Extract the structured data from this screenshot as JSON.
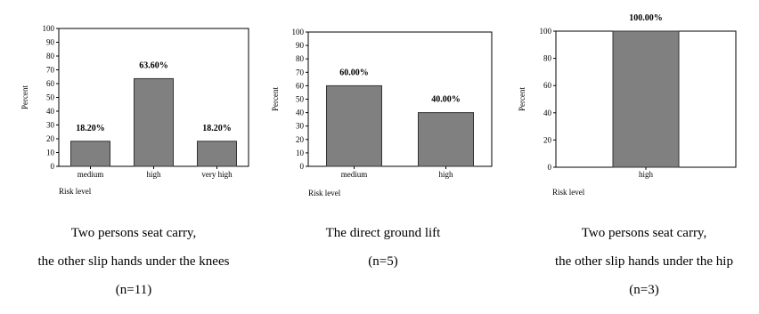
{
  "chart_data": [
    {
      "type": "bar",
      "categories": [
        "medium",
        "high",
        "very high"
      ],
      "values": [
        18.2,
        63.6,
        18.2
      ],
      "data_labels": [
        "18.20%",
        "63.60%",
        "18.20%"
      ],
      "ylabel": "Percent",
      "xlabel": "Risk level",
      "ylim": [
        0,
        100
      ],
      "yticks": [
        0,
        10,
        20,
        30,
        40,
        50,
        60,
        70,
        80,
        90,
        100
      ],
      "caption": [
        "Two persons seat carry,",
        "the other slip hands under the knees",
        "(n=11)"
      ],
      "grid": false,
      "legend": "none"
    },
    {
      "type": "bar",
      "categories": [
        "medium",
        "high"
      ],
      "values": [
        60.0,
        40.0
      ],
      "data_labels": [
        "60.00%",
        "40.00%"
      ],
      "ylabel": "Percent",
      "xlabel": "Risk level",
      "ylim": [
        0,
        100
      ],
      "yticks": [
        0,
        10,
        20,
        30,
        40,
        50,
        60,
        70,
        80,
        90,
        100
      ],
      "caption": [
        "The direct ground lift",
        "(n=5)"
      ],
      "grid": false,
      "legend": "none"
    },
    {
      "type": "bar",
      "categories": [
        "high"
      ],
      "values": [
        100.0
      ],
      "data_labels": [
        "100.00%"
      ],
      "ylabel": "Percent",
      "xlabel": "Risk level",
      "ylim": [
        0,
        100
      ],
      "yticks": [
        0,
        20,
        40,
        60,
        80,
        100
      ],
      "caption": [
        "Two persons seat carry,",
        "the other slip hands under the hip",
        "(n=3)"
      ],
      "grid": false,
      "legend": "none"
    }
  ],
  "colors": {
    "bar_fill": "#808080",
    "bar_stroke": "#333333",
    "axis": "#000000"
  }
}
